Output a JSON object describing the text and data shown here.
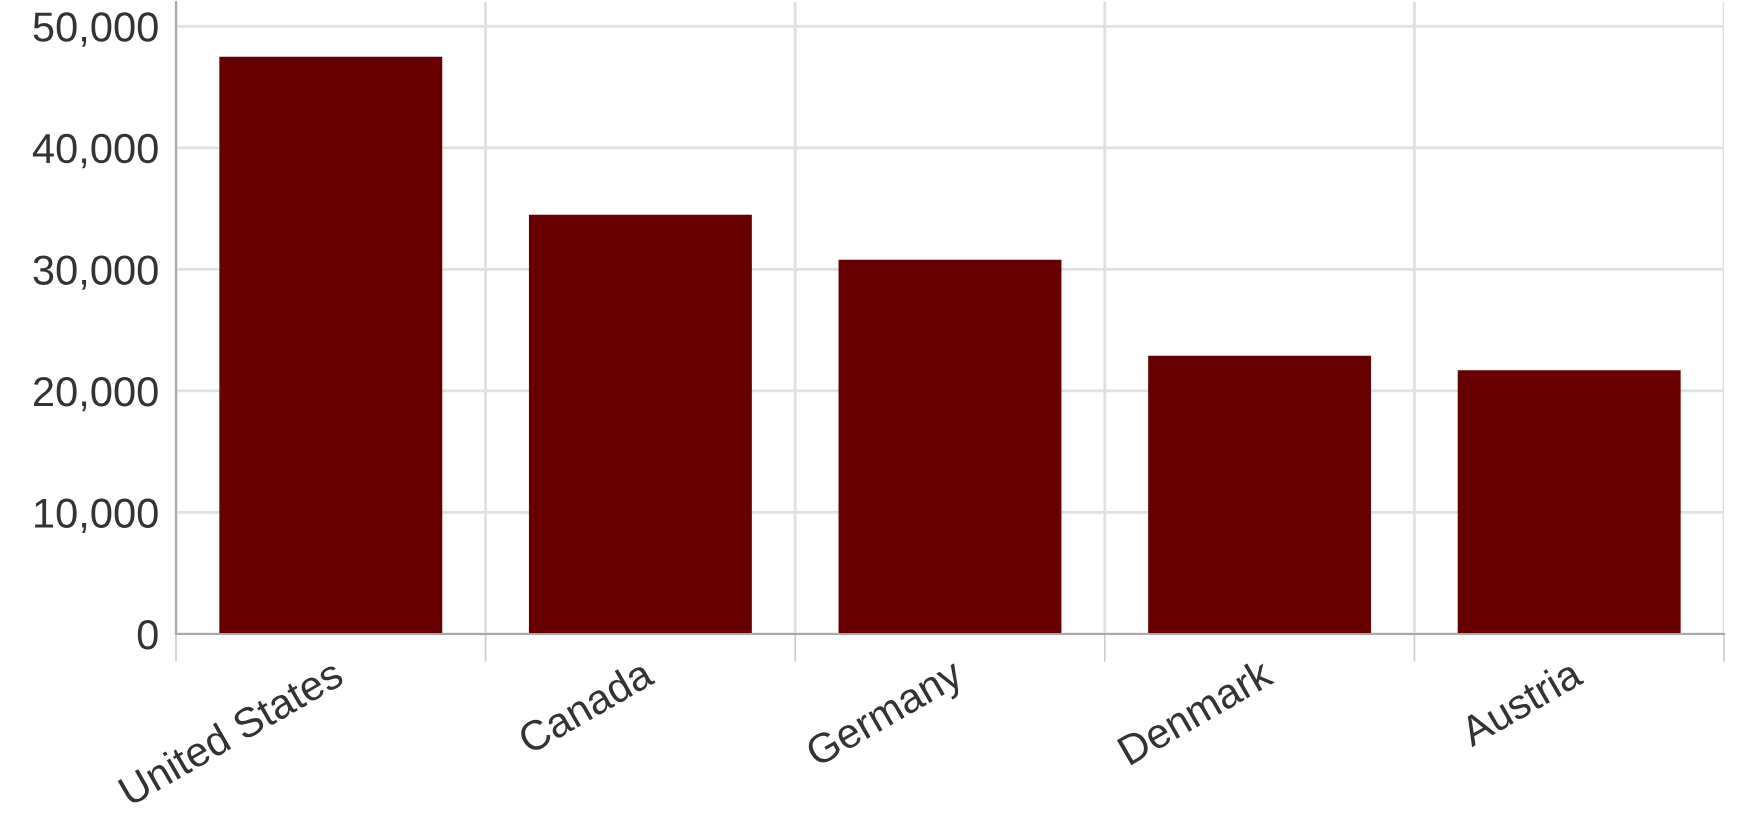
{
  "chart_data": {
    "type": "bar",
    "categories": [
      "United States",
      "Canada",
      "Germany",
      "Denmark",
      "Austria"
    ],
    "values": [
      47500,
      34500,
      30800,
      22900,
      21700
    ],
    "color": "#660000",
    "ylim": [
      0,
      52000
    ],
    "yticks": [
      {
        "value": 0,
        "label": "0"
      },
      {
        "value": 10000,
        "label": "10,000"
      },
      {
        "value": 20000,
        "label": "20,000"
      },
      {
        "value": 30000,
        "label": "30,000"
      },
      {
        "value": 40000,
        "label": "40,000"
      },
      {
        "value": 50000,
        "label": "50,000"
      }
    ],
    "grid": true
  }
}
